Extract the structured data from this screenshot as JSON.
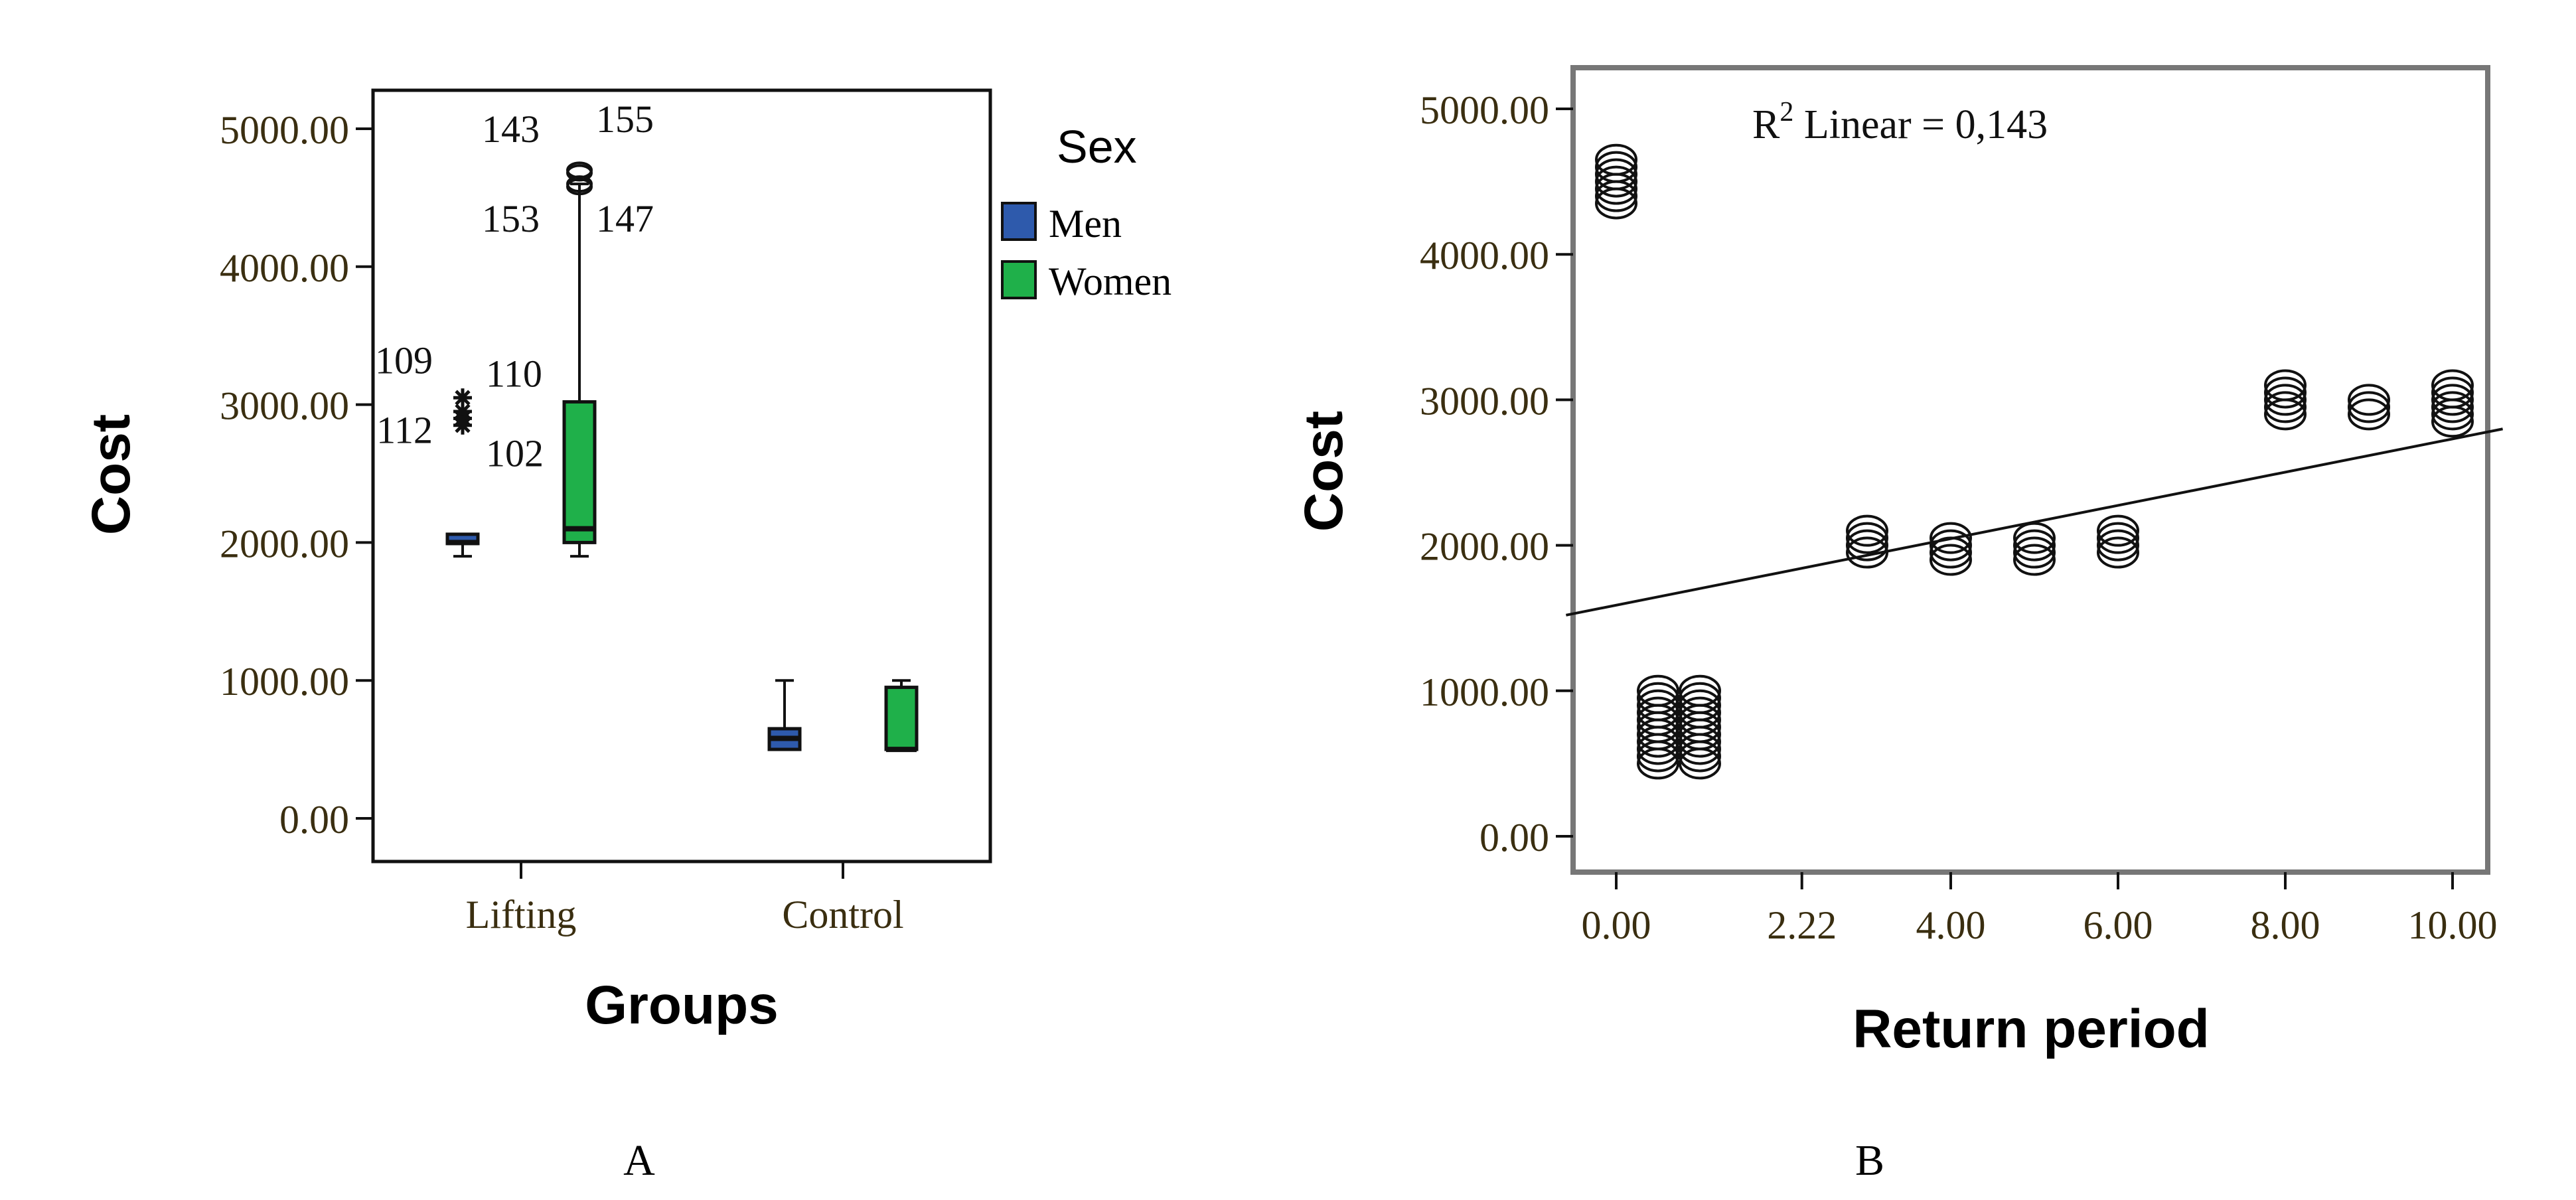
{
  "chart_data": [
    {
      "type": "box",
      "panel_label": "A",
      "xlabel": "Groups",
      "ylabel": "Cost",
      "ylim": [
        0,
        5000
      ],
      "yticks": [
        "0.00",
        "1000.00",
        "2000.00",
        "3000.00",
        "4000.00",
        "5000.00"
      ],
      "categories": [
        "Lifting",
        "Control"
      ],
      "legend": {
        "title": "Sex",
        "position": "right",
        "entries": [
          {
            "name": "Men",
            "color": "#2e5aac"
          },
          {
            "name": "Women",
            "color": "#1fb04a"
          }
        ]
      },
      "series": [
        {
          "name": "Men",
          "color": "#2e5aac",
          "boxes": [
            {
              "category": "Lifting",
              "min": 1900,
              "q1": 2000,
              "median": 2000,
              "q3": 2060,
              "max": 2060,
              "outliers": [
                {
                  "value": 3050,
                  "label": "109"
                },
                {
                  "value": 2950,
                  "label": "110"
                },
                {
                  "value": 2900,
                  "label": "112"
                },
                {
                  "value": 2850,
                  "label": "102"
                }
              ]
            },
            {
              "category": "Control",
              "min": 500,
              "q1": 500,
              "median": 580,
              "q3": 650,
              "max": 1000,
              "outliers": []
            }
          ]
        },
        {
          "name": "Women",
          "color": "#1fb04a",
          "boxes": [
            {
              "category": "Lifting",
              "min": 1900,
              "q1": 2000,
              "median": 2100,
              "q3": 3020,
              "max": 4600,
              "outliers": [
                {
                  "value": 4700,
                  "label": "143"
                },
                {
                  "value": 4680,
                  "label": "155"
                },
                {
                  "value": 4600,
                  "label": "153"
                },
                {
                  "value": 4580,
                  "label": "147"
                }
              ]
            },
            {
              "category": "Control",
              "min": 500,
              "q1": 500,
              "median": 500,
              "q3": 950,
              "max": 1000,
              "outliers": []
            }
          ]
        }
      ]
    },
    {
      "type": "scatter",
      "panel_label": "B",
      "xlabel": "Return period",
      "ylabel": "Cost",
      "xlim": [
        -0.6,
        10.6
      ],
      "ylim": [
        -300,
        5300
      ],
      "xticks": [
        0,
        2.22,
        4,
        6,
        8,
        10
      ],
      "xtick_labels": [
        "0.00",
        "2.22",
        "4.00",
        "6.00",
        "8.00",
        "10.00"
      ],
      "yticks": [
        "0.00",
        "1000.00",
        "2000.00",
        "3000.00",
        "4000.00",
        "5000.00"
      ],
      "annotation": {
        "prefix": "R",
        "superscript": "2",
        "text": " Linear = 0,143"
      },
      "fit_line": {
        "x": [
          -0.6,
          10.6
        ],
        "y": [
          1520,
          2800
        ]
      },
      "points": [
        [
          0,
          4350
        ],
        [
          0,
          4400
        ],
        [
          0,
          4450
        ],
        [
          0,
          4500
        ],
        [
          0,
          4550
        ],
        [
          0,
          4600
        ],
        [
          0,
          4650
        ],
        [
          0.5,
          500
        ],
        [
          0.5,
          550
        ],
        [
          0.5,
          600
        ],
        [
          0.5,
          650
        ],
        [
          0.5,
          700
        ],
        [
          0.5,
          750
        ],
        [
          0.5,
          800
        ],
        [
          0.5,
          850
        ],
        [
          0.5,
          900
        ],
        [
          0.5,
          950
        ],
        [
          0.5,
          1000
        ],
        [
          1,
          500
        ],
        [
          1,
          550
        ],
        [
          1,
          600
        ],
        [
          1,
          650
        ],
        [
          1,
          700
        ],
        [
          1,
          750
        ],
        [
          1,
          800
        ],
        [
          1,
          850
        ],
        [
          1,
          900
        ],
        [
          1,
          950
        ],
        [
          1,
          1000
        ],
        [
          3,
          1950
        ],
        [
          3,
          2000
        ],
        [
          3,
          2050
        ],
        [
          3,
          2100
        ],
        [
          4,
          1900
        ],
        [
          4,
          1950
        ],
        [
          4,
          2000
        ],
        [
          4,
          2050
        ],
        [
          5,
          1900
        ],
        [
          5,
          1950
        ],
        [
          5,
          2000
        ],
        [
          5,
          2050
        ],
        [
          6,
          1950
        ],
        [
          6,
          2000
        ],
        [
          6,
          2050
        ],
        [
          6,
          2100
        ],
        [
          8,
          2900
        ],
        [
          8,
          2950
        ],
        [
          8,
          3000
        ],
        [
          8,
          3050
        ],
        [
          8,
          3100
        ],
        [
          9,
          2900
        ],
        [
          9,
          2950
        ],
        [
          9,
          3000
        ],
        [
          10,
          2850
        ],
        [
          10,
          2900
        ],
        [
          10,
          2950
        ],
        [
          10,
          3000
        ],
        [
          10,
          3050
        ],
        [
          10,
          3100
        ]
      ]
    }
  ]
}
